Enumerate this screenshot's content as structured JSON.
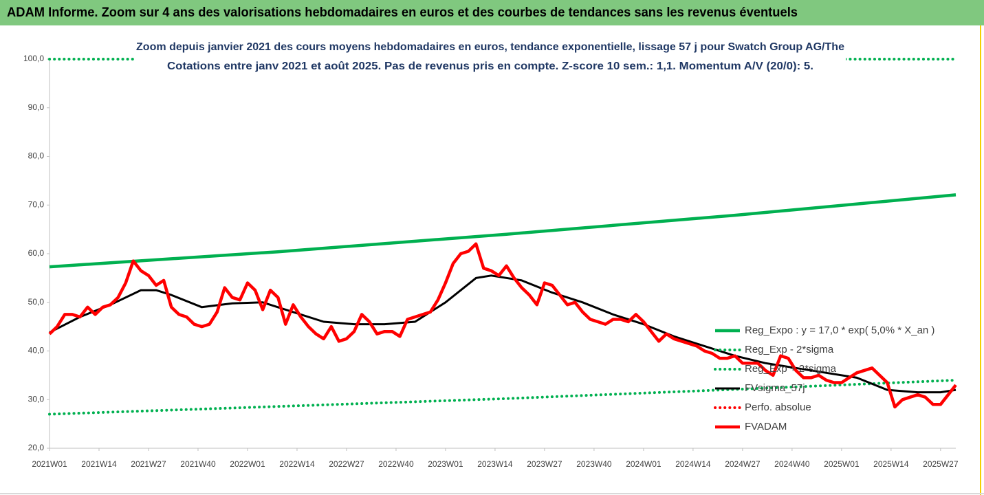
{
  "chart_data": {
    "type": "line",
    "title": "ADAM Informe. Zoom sur 4 ans des valorisations hebdomadaires en euros et des courbes de tendances sans les revenus éventuels",
    "subtitle": [
      "Zoom depuis janvier 2021 des cours moyens hebdomadaires en euros, tendance exponentielle, lissage 57 j pour Swatch Group AG/The",
      "Cotations entre janv 2021 et août 2025.  Pas de revenus pris en compte. Z-score 10 sem.: 1,1. Momentum A/V (20/0): 5."
    ],
    "xlim": [
      0,
      238
    ],
    "xticks": [
      {
        "value": 0,
        "label": "2021W01"
      },
      {
        "value": 13,
        "label": "2021W14"
      },
      {
        "value": 26,
        "label": "2021W27"
      },
      {
        "value": 39,
        "label": "2021W40"
      },
      {
        "value": 52,
        "label": "2022W01"
      },
      {
        "value": 65,
        "label": "2022W14"
      },
      {
        "value": 78,
        "label": "2022W27"
      },
      {
        "value": 91,
        "label": "2022W40"
      },
      {
        "value": 104,
        "label": "2023W01"
      },
      {
        "value": 117,
        "label": "2023W14"
      },
      {
        "value": 130,
        "label": "2023W27"
      },
      {
        "value": 143,
        "label": "2023W40"
      },
      {
        "value": 156,
        "label": "2024W01"
      },
      {
        "value": 169,
        "label": "2024W14"
      },
      {
        "value": 182,
        "label": "2024W27"
      },
      {
        "value": 195,
        "label": "2024W40"
      },
      {
        "value": 208,
        "label": "2025W01"
      },
      {
        "value": 221,
        "label": "2025W14"
      },
      {
        "value": 234,
        "label": "2025W27"
      }
    ],
    "ylim": [
      20,
      100
    ],
    "yticks": [
      {
        "value": 20,
        "label": "20,0"
      },
      {
        "value": 30,
        "label": "30,0"
      },
      {
        "value": 40,
        "label": "40,0"
      },
      {
        "value": 50,
        "label": "50,0"
      },
      {
        "value": 60,
        "label": "60,0"
      },
      {
        "value": 70,
        "label": "70,0"
      },
      {
        "value": 80,
        "label": "80,0"
      },
      {
        "value": 90,
        "label": "90,0"
      },
      {
        "value": 100,
        "label": "100,0"
      }
    ],
    "grid": false,
    "legend": "right",
    "series": [
      {
        "name": "Reg_Expo : y = 17,0 * exp( 5,0% *  X_an )",
        "color": "#00b050",
        "dotted": false,
        "x": [
          0,
          60,
          120,
          180,
          238
        ],
        "values": [
          57.3,
          60.4,
          64.0,
          67.9,
          72.1
        ]
      },
      {
        "name": "Reg_Exp - 2*sigma",
        "color": "#00b050",
        "dotted": true,
        "x": [
          0,
          60,
          120,
          180,
          238
        ],
        "values": [
          27.0,
          28.6,
          30.2,
          32.1,
          34.0
        ]
      },
      {
        "name": "Reg_Exp + 2*sigma",
        "color": "#00b050",
        "dotted": true,
        "x": [
          0,
          238
        ],
        "values": [
          100,
          100
        ]
      },
      {
        "name": "FVsigma_57j",
        "color": "#000000",
        "dotted": false,
        "x": [
          0,
          8,
          16,
          24,
          28,
          32,
          40,
          48,
          56,
          64,
          72,
          80,
          88,
          96,
          104,
          112,
          116,
          124,
          132,
          140,
          148,
          156,
          164,
          172,
          180,
          188,
          196,
          204,
          212,
          220,
          228,
          234,
          238
        ],
        "values": [
          43.8,
          47,
          49.5,
          52.5,
          52.5,
          51.5,
          49,
          49.8,
          50,
          48,
          46,
          45.5,
          45.5,
          46,
          50,
          55,
          55.5,
          54.5,
          52,
          50,
          47.5,
          45.5,
          43,
          41,
          39,
          37.5,
          36.5,
          35.5,
          34.5,
          32,
          31.5,
          31.5,
          32
        ]
      },
      {
        "name": "Perfo. absolue",
        "color": "#ff0000",
        "dotted": true,
        "x": [],
        "values": []
      },
      {
        "name": "FVADAM",
        "color": "#ff0000",
        "dotted": false,
        "x": [
          0,
          2,
          4,
          6,
          8,
          10,
          12,
          14,
          16,
          18,
          20,
          22,
          24,
          26,
          28,
          30,
          32,
          34,
          36,
          38,
          40,
          42,
          44,
          46,
          48,
          50,
          52,
          54,
          56,
          58,
          60,
          62,
          64,
          66,
          68,
          70,
          72,
          74,
          76,
          78,
          80,
          82,
          84,
          86,
          88,
          90,
          92,
          94,
          96,
          98,
          100,
          102,
          104,
          106,
          108,
          110,
          112,
          114,
          116,
          118,
          120,
          122,
          124,
          126,
          128,
          130,
          132,
          134,
          136,
          138,
          140,
          142,
          144,
          146,
          148,
          150,
          152,
          154,
          156,
          158,
          160,
          162,
          164,
          166,
          168,
          170,
          172,
          174,
          176,
          178,
          180,
          182,
          184,
          186,
          188,
          190,
          192,
          194,
          196,
          198,
          200,
          202,
          204,
          206,
          208,
          210,
          212,
          214,
          216,
          218,
          220,
          222,
          224,
          226,
          228,
          230,
          232,
          234,
          236,
          238
        ],
        "values": [
          43.5,
          45,
          47.5,
          47.5,
          47,
          49,
          47.5,
          49,
          49.5,
          51,
          54,
          58.5,
          56.5,
          55.5,
          53.5,
          54.5,
          49,
          47.5,
          47,
          45.5,
          45,
          45.5,
          48,
          53,
          51,
          50.5,
          54,
          52.5,
          48.5,
          52.5,
          51,
          45.5,
          49.5,
          47,
          45,
          43.5,
          42.5,
          45,
          42,
          42.5,
          44,
          47.5,
          46,
          43.5,
          44,
          44,
          43,
          46.5,
          47,
          47.5,
          48,
          50.5,
          54,
          58,
          60,
          60.5,
          62,
          57,
          56.5,
          55.5,
          57.5,
          55,
          53,
          51.5,
          49.5,
          54,
          53.5,
          51.5,
          49.5,
          50,
          48,
          46.5,
          46,
          45.5,
          46.5,
          46.5,
          46,
          47.5,
          46,
          44,
          42,
          43.5,
          42.5,
          42,
          41.5,
          41,
          40,
          39.5,
          38.5,
          38.5,
          39,
          37.5,
          37.5,
          37.5,
          36,
          35,
          39,
          38.5,
          36,
          34.5,
          34.5,
          35,
          34,
          33.5,
          33.5,
          34.5,
          35.5,
          36,
          36.5,
          35,
          33.5,
          28.5,
          30,
          30.5,
          31,
          30.5,
          29,
          29,
          31,
          33
        ]
      }
    ]
  }
}
